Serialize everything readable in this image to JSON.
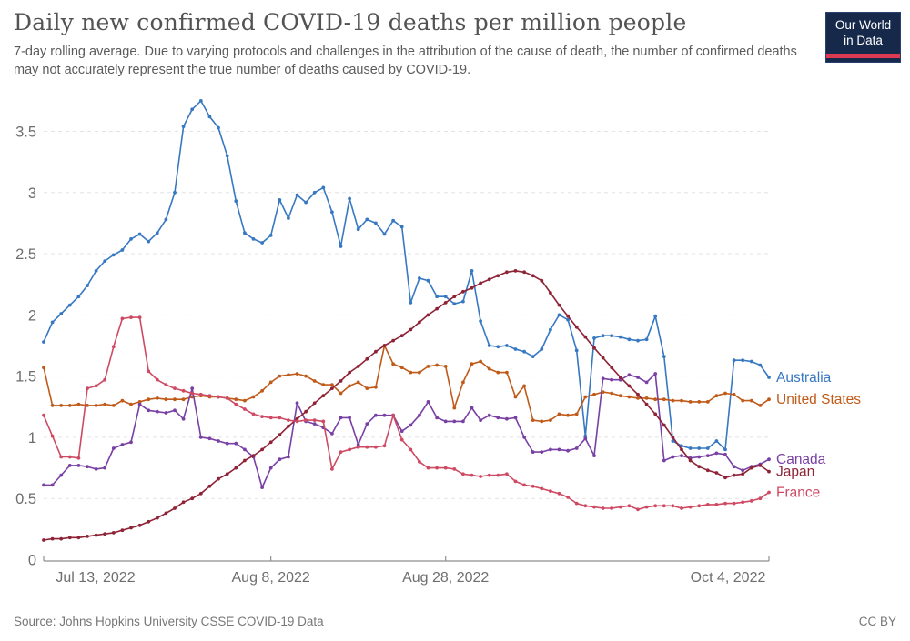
{
  "header": {
    "title": "Daily new confirmed COVID-19 deaths per million people",
    "subtitle": "7-day rolling average. Due to varying protocols and challenges in the attribution of the cause of death, the number of confirmed deaths may not accurately represent the true number of deaths caused by COVID-19.",
    "logo": {
      "line1": "Our World",
      "line2": "in Data",
      "bg_color": "#16294B",
      "accent_color": "#DC3A50"
    }
  },
  "footer": {
    "source": "Source: Johns Hopkins University CSSE COVID-19 Data",
    "license": "CC BY"
  },
  "chart_data": {
    "type": "line",
    "title": "Daily new confirmed COVID-19 deaths per million people",
    "xlabel": "",
    "ylabel": "",
    "grid": true,
    "legend_position": "right of line ends",
    "ylim": [
      0,
      3.75
    ],
    "y_ticks": [
      0,
      0.5,
      1,
      1.5,
      2,
      2.5,
      3,
      3.5
    ],
    "x_start": "Jul 13, 2022",
    "x_end": "Oct 4, 2022",
    "x_range_days": 83,
    "x_tick_days": [
      0,
      26,
      46,
      83
    ],
    "x_tick_labels": [
      "Jul 13, 2022",
      "Aug 8, 2022",
      "Aug 28, 2022",
      "Oct 4, 2022"
    ],
    "axis_color": "#8f8f8f",
    "grid_color": "#e3e3e3",
    "tick_label_color": "#6e6e6e",
    "series": [
      {
        "name": "Australia",
        "color": "#3778C2",
        "values": [
          1.78,
          1.94,
          2.01,
          2.08,
          2.15,
          2.24,
          2.36,
          2.44,
          2.49,
          2.53,
          2.62,
          2.66,
          2.6,
          2.67,
          2.78,
          3.0,
          3.54,
          3.68,
          3.75,
          3.62,
          3.53,
          3.3,
          2.93,
          2.67,
          2.62,
          2.59,
          2.65,
          2.94,
          2.79,
          2.98,
          2.92,
          3.0,
          3.04,
          2.84,
          2.56,
          2.95,
          2.7,
          2.78,
          2.75,
          2.66,
          2.77,
          2.72,
          2.1,
          2.3,
          2.28,
          2.15,
          2.15,
          2.09,
          2.11,
          2.36,
          1.95,
          1.75,
          1.74,
          1.75,
          1.72,
          1.7,
          1.66,
          1.72,
          1.88,
          2.0,
          1.96,
          1.71,
          1.01,
          1.81,
          1.83,
          1.83,
          1.82,
          1.8,
          1.79,
          1.8,
          1.99,
          1.66,
          0.97,
          0.93,
          0.91,
          0.91,
          0.91,
          0.97,
          0.9,
          1.63,
          1.63,
          1.62,
          1.59,
          1.49
        ]
      },
      {
        "name": "United States",
        "color": "#C05A19",
        "values": [
          1.57,
          1.26,
          1.26,
          1.26,
          1.27,
          1.26,
          1.26,
          1.27,
          1.26,
          1.3,
          1.27,
          1.29,
          1.31,
          1.32,
          1.31,
          1.31,
          1.31,
          1.33,
          1.34,
          1.33,
          1.33,
          1.32,
          1.31,
          1.3,
          1.33,
          1.38,
          1.45,
          1.5,
          1.51,
          1.52,
          1.5,
          1.46,
          1.43,
          1.43,
          1.36,
          1.42,
          1.45,
          1.4,
          1.41,
          1.75,
          1.6,
          1.57,
          1.53,
          1.53,
          1.58,
          1.59,
          1.58,
          1.24,
          1.45,
          1.6,
          1.62,
          1.56,
          1.53,
          1.53,
          1.33,
          1.42,
          1.14,
          1.13,
          1.14,
          1.19,
          1.18,
          1.19,
          1.33,
          1.35,
          1.37,
          1.36,
          1.34,
          1.33,
          1.32,
          1.32,
          1.31,
          1.31,
          1.3,
          1.3,
          1.29,
          1.29,
          1.29,
          1.34,
          1.36,
          1.35,
          1.3,
          1.3,
          1.26,
          1.31
        ]
      },
      {
        "name": "Canada",
        "color": "#7940A4",
        "values": [
          0.61,
          0.61,
          0.69,
          0.77,
          0.77,
          0.76,
          0.74,
          0.75,
          0.91,
          0.94,
          0.96,
          1.27,
          1.22,
          1.21,
          1.2,
          1.22,
          1.15,
          1.4,
          1.0,
          0.99,
          0.97,
          0.95,
          0.95,
          0.9,
          0.84,
          0.59,
          0.75,
          0.82,
          0.84,
          1.28,
          1.13,
          1.11,
          1.08,
          1.03,
          1.16,
          1.16,
          0.94,
          1.11,
          1.18,
          1.18,
          1.18,
          1.05,
          1.1,
          1.18,
          1.29,
          1.16,
          1.13,
          1.13,
          1.13,
          1.24,
          1.14,
          1.18,
          1.16,
          1.15,
          1.16,
          1.0,
          0.88,
          0.88,
          0.9,
          0.9,
          0.89,
          0.91,
          0.99,
          0.85,
          1.48,
          1.47,
          1.47,
          1.51,
          1.49,
          1.45,
          1.52,
          0.81,
          0.84,
          0.85,
          0.83,
          0.84,
          0.85,
          0.87,
          0.86,
          0.76,
          0.73,
          0.76,
          0.78,
          0.82
        ]
      },
      {
        "name": "Japan",
        "color": "#8E2336",
        "values": [
          0.16,
          0.17,
          0.17,
          0.18,
          0.18,
          0.19,
          0.2,
          0.21,
          0.22,
          0.24,
          0.26,
          0.28,
          0.31,
          0.34,
          0.38,
          0.42,
          0.47,
          0.5,
          0.54,
          0.6,
          0.66,
          0.7,
          0.75,
          0.81,
          0.85,
          0.9,
          0.96,
          1.02,
          1.09,
          1.15,
          1.21,
          1.28,
          1.34,
          1.4,
          1.46,
          1.53,
          1.58,
          1.64,
          1.7,
          1.75,
          1.79,
          1.83,
          1.88,
          1.94,
          2.0,
          2.05,
          2.1,
          2.15,
          2.19,
          2.22,
          2.26,
          2.29,
          2.32,
          2.35,
          2.36,
          2.35,
          2.32,
          2.28,
          2.18,
          2.08,
          1.99,
          1.9,
          1.82,
          1.73,
          1.65,
          1.57,
          1.49,
          1.42,
          1.35,
          1.27,
          1.19,
          1.1,
          1.0,
          0.9,
          0.81,
          0.76,
          0.73,
          0.71,
          0.67,
          0.69,
          0.7,
          0.75,
          0.77,
          0.72
        ]
      },
      {
        "name": "France",
        "color": "#CE4A63",
        "values": [
          1.18,
          1.01,
          0.84,
          0.84,
          0.83,
          1.4,
          1.42,
          1.47,
          1.74,
          1.97,
          1.98,
          1.98,
          1.54,
          1.47,
          1.43,
          1.4,
          1.38,
          1.36,
          1.35,
          1.34,
          1.33,
          1.32,
          1.27,
          1.23,
          1.19,
          1.17,
          1.16,
          1.16,
          1.14,
          1.13,
          1.14,
          1.14,
          1.13,
          0.74,
          0.88,
          0.9,
          0.92,
          0.92,
          0.92,
          0.93,
          1.18,
          0.98,
          0.9,
          0.8,
          0.75,
          0.75,
          0.75,
          0.74,
          0.7,
          0.69,
          0.68,
          0.69,
          0.69,
          0.7,
          0.64,
          0.61,
          0.6,
          0.58,
          0.56,
          0.54,
          0.51,
          0.46,
          0.44,
          0.43,
          0.42,
          0.42,
          0.43,
          0.44,
          0.41,
          0.43,
          0.44,
          0.44,
          0.44,
          0.42,
          0.43,
          0.44,
          0.45,
          0.45,
          0.46,
          0.46,
          0.47,
          0.48,
          0.5,
          0.55
        ]
      }
    ]
  }
}
